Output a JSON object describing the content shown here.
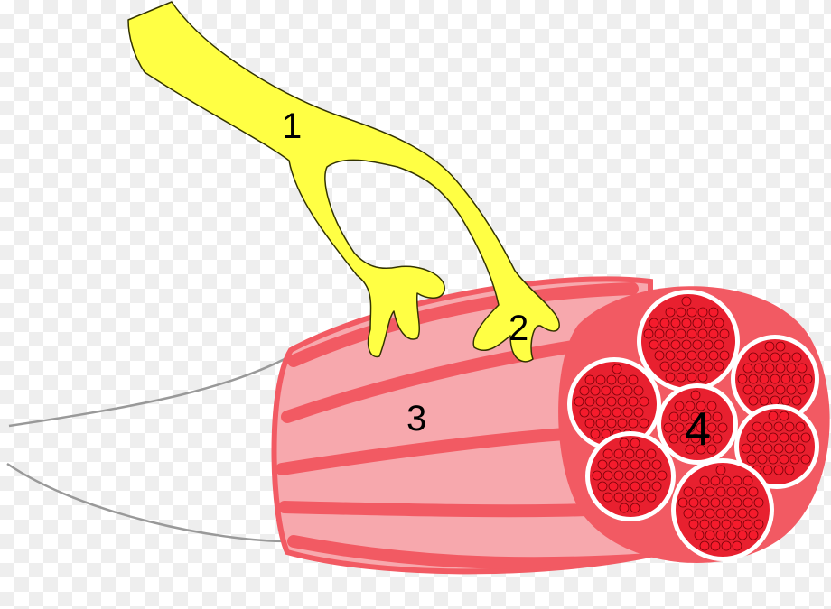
{
  "labels": {
    "nerve": "1",
    "terminal": "2",
    "muscle": "3",
    "fascicle": "4"
  },
  "colors": {
    "nerve_fill": "#ffff44",
    "nerve_stroke": "#333300",
    "muscle_body": "#f7a8ad",
    "muscle_stripe": "#f25a63",
    "fascicle_fill": "#e8202f",
    "fiber_fill": "#f51b2c",
    "fiber_stroke": "#7a0008",
    "tendon": "#999999",
    "background_check": "#eeeeee"
  },
  "fascicle_count": 7
}
